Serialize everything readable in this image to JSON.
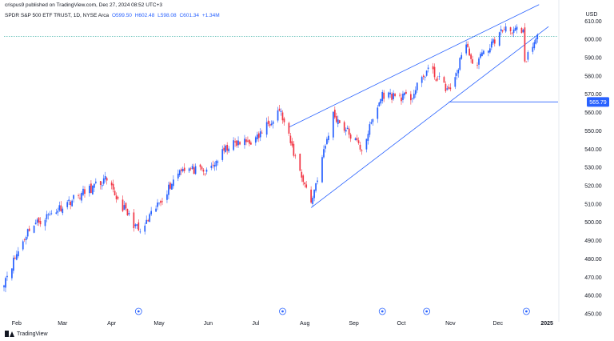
{
  "header": {
    "line1": "crispus9 published on TradingView.com, Dec 27, 2024 08:52 UTC+3",
    "symbol": "SPDR S&P 500 ETF TRUST, 1D, NYSE Arca",
    "open": "O599.50",
    "high": "H602.48",
    "low": "L598.08",
    "close": "C601.34",
    "change": "+1.34M"
  },
  "footer": {
    "brand": "TradingView"
  },
  "chart_data": {
    "type": "candlestick",
    "currency": "USD",
    "y_ticks": [
      450,
      460,
      470,
      480,
      490,
      500,
      510,
      520,
      530,
      540,
      550,
      560,
      570,
      580,
      590,
      600,
      610
    ],
    "y_range": [
      450,
      618
    ],
    "x_ticks": [
      "Feb",
      "Mar",
      "Apr",
      "May",
      "Jun",
      "Jul",
      "Aug",
      "Sep",
      "Oct",
      "Nov",
      "Dec",
      "2025"
    ],
    "x_range": [
      "2024-01-24",
      "2025-01-08"
    ],
    "price_label": "565.79",
    "horizontal_line": 565.79,
    "dotted_line": 601.5,
    "channel": {
      "lower": [
        [
          "2024-08-05",
          508
        ],
        [
          "2025-01-02",
          607
        ]
      ],
      "upper": [
        [
          "2024-07-22",
          552
        ],
        [
          "2024-12-27",
          619
        ]
      ]
    },
    "event_markers": [
      "2024-04-18",
      "2024-07-18",
      "2024-09-19",
      "2024-10-17",
      "2024-12-19"
    ],
    "anchors": [
      [
        "2024-01-24",
        468
      ],
      [
        "2024-02-09",
        497
      ],
      [
        "2024-03-08",
        513
      ],
      [
        "2024-03-28",
        523
      ],
      [
        "2024-04-19",
        494
      ],
      [
        "2024-05-15",
        530
      ],
      [
        "2024-05-31",
        527
      ],
      [
        "2024-06-14",
        542
      ],
      [
        "2024-07-01",
        545
      ],
      [
        "2024-07-16",
        562
      ],
      [
        "2024-07-25",
        538
      ],
      [
        "2024-08-05",
        511
      ],
      [
        "2024-08-19",
        559
      ],
      [
        "2024-09-06",
        540
      ],
      [
        "2024-09-19",
        570
      ],
      [
        "2024-10-07",
        568
      ],
      [
        "2024-10-18",
        584
      ],
      [
        "2024-11-01",
        571
      ],
      [
        "2024-11-11",
        599
      ],
      [
        "2024-11-15",
        585
      ],
      [
        "2024-12-06",
        607
      ],
      [
        "2024-12-17",
        603
      ],
      [
        "2024-12-18",
        586
      ],
      [
        "2024-12-20",
        591
      ],
      [
        "2024-12-26",
        601
      ]
    ]
  },
  "colors": {
    "up": "#2962ff",
    "down": "#f23645",
    "line": "#2962ff",
    "label_bg": "#2962ff",
    "dotted": "#26a69a"
  }
}
